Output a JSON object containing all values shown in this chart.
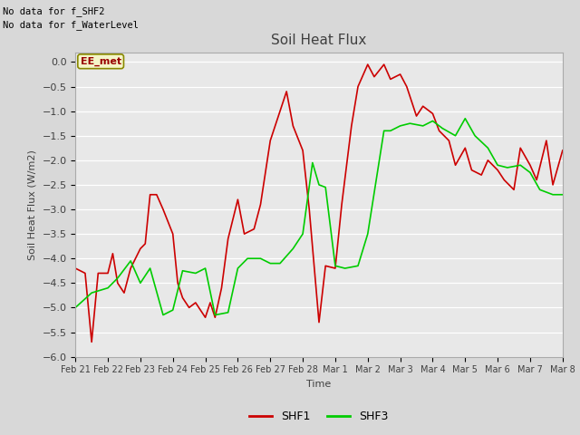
{
  "title": "Soil Heat Flux",
  "ylabel": "Soil Heat Flux (W/m2)",
  "xlabel": "Time",
  "ylim": [
    -6.0,
    0.2
  ],
  "yticks": [
    0.0,
    -0.5,
    -1.0,
    -1.5,
    -2.0,
    -2.5,
    -3.0,
    -3.5,
    -4.0,
    -4.5,
    -5.0,
    -5.5,
    -6.0
  ],
  "bg_color": "#d8d8d8",
  "plot_bg_color": "#e8e8e8",
  "text_color": "#404040",
  "annotations": [
    "No data for f_SHF2",
    "No data for f_WaterLevel"
  ],
  "legend_box_label": "EE_met",
  "legend_box_color": "#f5f5c8",
  "legend_box_border": "#888800",
  "shf1_color": "#cc0000",
  "shf3_color": "#00cc00",
  "x_labels": [
    "Feb 21",
    "Feb 22",
    "Feb 23",
    "Feb 24",
    "Feb 25",
    "Feb 26",
    "Feb 27",
    "Feb 28",
    "Mar 1",
    "Mar 2",
    "Mar 3",
    "Mar 4",
    "Mar 5",
    "Mar 6",
    "Mar 7",
    "Mar 8"
  ],
  "shf1_x": [
    0,
    0.15,
    0.3,
    0.5,
    0.7,
    1.0,
    1.15,
    1.3,
    1.5,
    1.7,
    2.0,
    2.15,
    2.3,
    2.5,
    2.7,
    3.0,
    3.15,
    3.3,
    3.5,
    3.7,
    4.0,
    4.15,
    4.3,
    4.5,
    4.7,
    5.0,
    5.2,
    5.5,
    5.7,
    6.0,
    6.2,
    6.5,
    6.7,
    7.0,
    7.2,
    7.5,
    7.7,
    8.0,
    8.2,
    8.5,
    8.7,
    9.0,
    9.2,
    9.5,
    9.7,
    10.0,
    10.2,
    10.5,
    10.7,
    11.0,
    11.2,
    11.5,
    11.7,
    12.0,
    12.2,
    12.5,
    12.7,
    13.0,
    13.2,
    13.5,
    13.7,
    14.0,
    14.2,
    14.5,
    14.7,
    15.0
  ],
  "shf1_y": [
    -4.2,
    -4.25,
    -4.3,
    -5.7,
    -4.3,
    -4.3,
    -3.9,
    -4.5,
    -4.7,
    -4.2,
    -3.8,
    -3.7,
    -2.7,
    -2.7,
    -3.0,
    -3.5,
    -4.5,
    -4.8,
    -5.0,
    -4.9,
    -5.2,
    -4.9,
    -5.2,
    -4.6,
    -3.6,
    -2.8,
    -3.5,
    -3.4,
    -2.9,
    -1.6,
    -1.2,
    -0.6,
    -1.3,
    -1.8,
    -3.0,
    -5.3,
    -4.15,
    -4.2,
    -2.9,
    -1.3,
    -0.5,
    -0.05,
    -0.3,
    -0.05,
    -0.35,
    -0.25,
    -0.5,
    -1.1,
    -0.9,
    -1.05,
    -1.4,
    -1.6,
    -2.1,
    -1.75,
    -2.2,
    -2.3,
    -2.0,
    -2.2,
    -2.4,
    -2.6,
    -1.75,
    -2.1,
    -2.4,
    -1.6,
    -2.5,
    -1.8
  ],
  "shf3_x": [
    0,
    0.5,
    1.0,
    1.3,
    1.7,
    2.0,
    2.3,
    2.7,
    3.0,
    3.3,
    3.7,
    4.0,
    4.3,
    4.7,
    5.0,
    5.3,
    5.7,
    6.0,
    6.3,
    6.7,
    7.0,
    7.3,
    7.5,
    7.7,
    8.0,
    8.3,
    8.7,
    9.0,
    9.5,
    9.7,
    10.0,
    10.3,
    10.7,
    11.0,
    11.3,
    11.7,
    12.0,
    12.3,
    12.7,
    13.0,
    13.3,
    13.7,
    14.0,
    14.3,
    14.7,
    15.0
  ],
  "shf3_y": [
    -5.0,
    -4.7,
    -4.6,
    -4.4,
    -4.05,
    -4.5,
    -4.2,
    -5.15,
    -5.05,
    -4.25,
    -4.3,
    -4.2,
    -5.15,
    -5.1,
    -4.2,
    -4.0,
    -4.0,
    -4.1,
    -4.1,
    -3.8,
    -3.5,
    -2.05,
    -2.5,
    -2.55,
    -4.15,
    -4.2,
    -4.15,
    -3.5,
    -1.4,
    -1.4,
    -1.3,
    -1.25,
    -1.3,
    -1.2,
    -1.35,
    -1.5,
    -1.15,
    -1.5,
    -1.75,
    -2.1,
    -2.15,
    -2.1,
    -2.25,
    -2.6,
    -2.7,
    -2.7
  ]
}
